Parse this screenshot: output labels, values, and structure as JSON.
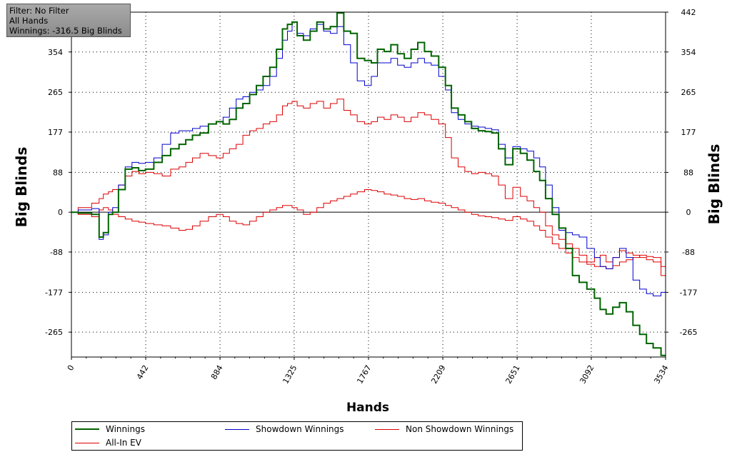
{
  "info": {
    "filter": "Filter: No Filter",
    "hands": "All Hands",
    "winnings": "Winnings: -316.5 Big Blinds"
  },
  "colors": {
    "winnings": "#006400",
    "showdown": "#0000cd",
    "non_showdown": "#dd0000",
    "allin": "#dd0000"
  },
  "chart_data": {
    "type": "line",
    "xlabel": "Hands",
    "ylabel": "Big Blinds",
    "xlim": [
      0,
      3534
    ],
    "ylim": [
      -320,
      442
    ],
    "x_ticks": [
      "0",
      "442",
      "884",
      "1325",
      "1767",
      "2209",
      "2651",
      "3092",
      "3534"
    ],
    "y_ticks": [
      "442",
      "354",
      "265",
      "177",
      "88",
      "0",
      "-88",
      "-177",
      "-265"
    ],
    "grid": true,
    "legend_position": "bottom",
    "series": [
      {
        "name": "Winnings",
        "x": [
          0,
          80,
          160,
          170,
          210,
          230,
          260,
          300,
          340,
          380,
          420,
          460,
          520,
          560,
          620,
          660,
          700,
          740,
          790,
          840,
          884,
          920,
          960,
          1000,
          1040,
          1080,
          1120,
          1160,
          1200,
          1240,
          1270,
          1300,
          1325,
          1360,
          1400,
          1440,
          1480,
          1520,
          1560,
          1600,
          1640,
          1680,
          1720,
          1767,
          1800,
          1840,
          1880,
          1920,
          1960,
          2000,
          2040,
          2080,
          2120,
          2160,
          2209,
          2240,
          2280,
          2320,
          2360,
          2400,
          2440,
          2480,
          2520,
          2560,
          2600,
          2651,
          2690,
          2730,
          2770,
          2800,
          2840,
          2880,
          2920,
          2960,
          3000,
          3040,
          3092,
          3130,
          3160,
          3200,
          3240,
          3280,
          3320,
          3360,
          3400,
          3440,
          3480,
          3534
        ],
        "values": [
          0,
          -2,
          -5,
          -55,
          -45,
          -5,
          0,
          50,
          95,
          98,
          92,
          95,
          110,
          125,
          140,
          150,
          160,
          170,
          175,
          195,
          200,
          195,
          205,
          230,
          240,
          260,
          280,
          300,
          320,
          360,
          405,
          415,
          420,
          390,
          380,
          400,
          420,
          405,
          410,
          440,
          400,
          395,
          340,
          335,
          330,
          360,
          355,
          370,
          350,
          340,
          360,
          375,
          355,
          345,
          320,
          280,
          230,
          215,
          200,
          185,
          180,
          178,
          175,
          140,
          105,
          140,
          130,
          115,
          90,
          70,
          30,
          -5,
          -35,
          -80,
          -140,
          -155,
          -170,
          -190,
          -215,
          -225,
          -210,
          -200,
          -220,
          -250,
          -270,
          -290,
          -300,
          -316.5
        ]
      },
      {
        "name": "Showdown Winnings",
        "x": [
          0,
          80,
          160,
          170,
          210,
          230,
          260,
          300,
          340,
          380,
          420,
          460,
          520,
          560,
          620,
          660,
          700,
          740,
          790,
          840,
          884,
          920,
          960,
          1000,
          1040,
          1080,
          1120,
          1160,
          1200,
          1240,
          1270,
          1300,
          1325,
          1360,
          1400,
          1440,
          1480,
          1520,
          1560,
          1600,
          1640,
          1680,
          1720,
          1767,
          1800,
          1840,
          1880,
          1920,
          1960,
          2000,
          2040,
          2080,
          2120,
          2160,
          2209,
          2240,
          2280,
          2320,
          2360,
          2400,
          2440,
          2480,
          2520,
          2560,
          2600,
          2651,
          2690,
          2730,
          2770,
          2800,
          2840,
          2880,
          2920,
          2960,
          3000,
          3040,
          3092,
          3130,
          3160,
          3200,
          3240,
          3280,
          3320,
          3360,
          3400,
          3440,
          3480,
          3534
        ],
        "values": [
          0,
          5,
          8,
          -60,
          -50,
          0,
          10,
          60,
          100,
          110,
          108,
          110,
          120,
          150,
          175,
          180,
          180,
          185,
          190,
          195,
          200,
          210,
          230,
          250,
          255,
          265,
          270,
          280,
          300,
          340,
          380,
          400,
          420,
          395,
          390,
          405,
          415,
          400,
          395,
          410,
          370,
          330,
          290,
          280,
          300,
          330,
          330,
          340,
          325,
          320,
          330,
          340,
          330,
          325,
          300,
          270,
          220,
          205,
          195,
          190,
          188,
          185,
          182,
          150,
          120,
          145,
          140,
          135,
          120,
          100,
          60,
          10,
          -40,
          -45,
          -50,
          -55,
          -80,
          -100,
          -120,
          -125,
          -100,
          -80,
          -100,
          -150,
          -170,
          -180,
          -185,
          -177
        ]
      },
      {
        "name": "Non Showdown Winnings",
        "x": [
          0,
          80,
          160,
          170,
          210,
          230,
          260,
          300,
          340,
          380,
          420,
          460,
          520,
          560,
          620,
          660,
          700,
          740,
          790,
          840,
          884,
          920,
          960,
          1000,
          1040,
          1080,
          1120,
          1160,
          1200,
          1240,
          1270,
          1300,
          1325,
          1360,
          1400,
          1440,
          1480,
          1520,
          1560,
          1600,
          1640,
          1680,
          1720,
          1767,
          1800,
          1840,
          1880,
          1920,
          1960,
          2000,
          2040,
          2080,
          2120,
          2160,
          2209,
          2240,
          2280,
          2320,
          2360,
          2400,
          2440,
          2480,
          2520,
          2560,
          2600,
          2651,
          2690,
          2730,
          2770,
          2800,
          2840,
          2880,
          2920,
          2960,
          3000,
          3040,
          3092,
          3130,
          3160,
          3200,
          3240,
          3280,
          3320,
          3360,
          3400,
          3440,
          3480,
          3534
        ],
        "values": [
          0,
          -5,
          -10,
          5,
          10,
          5,
          -5,
          -10,
          -15,
          -20,
          -22,
          -25,
          -28,
          -30,
          -35,
          -40,
          -38,
          -30,
          -20,
          -10,
          -5,
          -10,
          -20,
          -25,
          -28,
          -20,
          -10,
          0,
          5,
          10,
          15,
          15,
          10,
          5,
          -5,
          0,
          10,
          20,
          25,
          30,
          35,
          40,
          45,
          50,
          48,
          45,
          40,
          38,
          35,
          30,
          28,
          30,
          25,
          22,
          20,
          15,
          10,
          5,
          0,
          -5,
          -8,
          -10,
          -12,
          -15,
          -18,
          -10,
          -15,
          -20,
          -30,
          -40,
          -55,
          -70,
          -80,
          -90,
          -100,
          -110,
          -115,
          -120,
          -120,
          -125,
          -118,
          -110,
          -105,
          -100,
          -95,
          -98,
          -100,
          -120
        ]
      },
      {
        "name": "All-In EV",
        "x": [
          0,
          80,
          160,
          170,
          210,
          230,
          260,
          300,
          340,
          380,
          420,
          460,
          520,
          560,
          620,
          660,
          700,
          740,
          790,
          840,
          884,
          920,
          960,
          1000,
          1040,
          1080,
          1120,
          1160,
          1200,
          1240,
          1270,
          1300,
          1325,
          1360,
          1400,
          1440,
          1480,
          1520,
          1560,
          1600,
          1640,
          1680,
          1720,
          1767,
          1800,
          1840,
          1880,
          1920,
          1960,
          2000,
          2040,
          2080,
          2120,
          2160,
          2209,
          2240,
          2280,
          2320,
          2360,
          2400,
          2440,
          2480,
          2520,
          2560,
          2600,
          2651,
          2690,
          2730,
          2770,
          2800,
          2840,
          2880,
          2920,
          2960,
          3000,
          3040,
          3092,
          3130,
          3160,
          3200,
          3240,
          3280,
          3320,
          3360,
          3400,
          3440,
          3480,
          3534
        ],
        "values": [
          0,
          10,
          20,
          30,
          40,
          45,
          50,
          60,
          80,
          90,
          85,
          88,
          85,
          80,
          95,
          100,
          110,
          120,
          130,
          125,
          120,
          130,
          140,
          150,
          170,
          180,
          185,
          195,
          200,
          215,
          235,
          240,
          245,
          235,
          230,
          240,
          245,
          230,
          240,
          250,
          225,
          215,
          200,
          195,
          200,
          210,
          205,
          215,
          210,
          200,
          210,
          220,
          215,
          205,
          195,
          165,
          120,
          100,
          90,
          85,
          88,
          85,
          80,
          60,
          30,
          55,
          35,
          25,
          10,
          0,
          -30,
          -50,
          -60,
          -70,
          -80,
          -95,
          -110,
          -100,
          -95,
          -110,
          -100,
          -85,
          -90,
          -95,
          -100,
          -105,
          -110,
          -140
        ]
      }
    ]
  },
  "axis_titles": {
    "y_left": "Big Blinds",
    "y_right": "Big Blinds",
    "x": "Hands"
  },
  "legend": {
    "items": [
      "Winnings",
      "Showdown Winnings",
      "Non Showdown Winnings",
      "All-In EV"
    ]
  }
}
